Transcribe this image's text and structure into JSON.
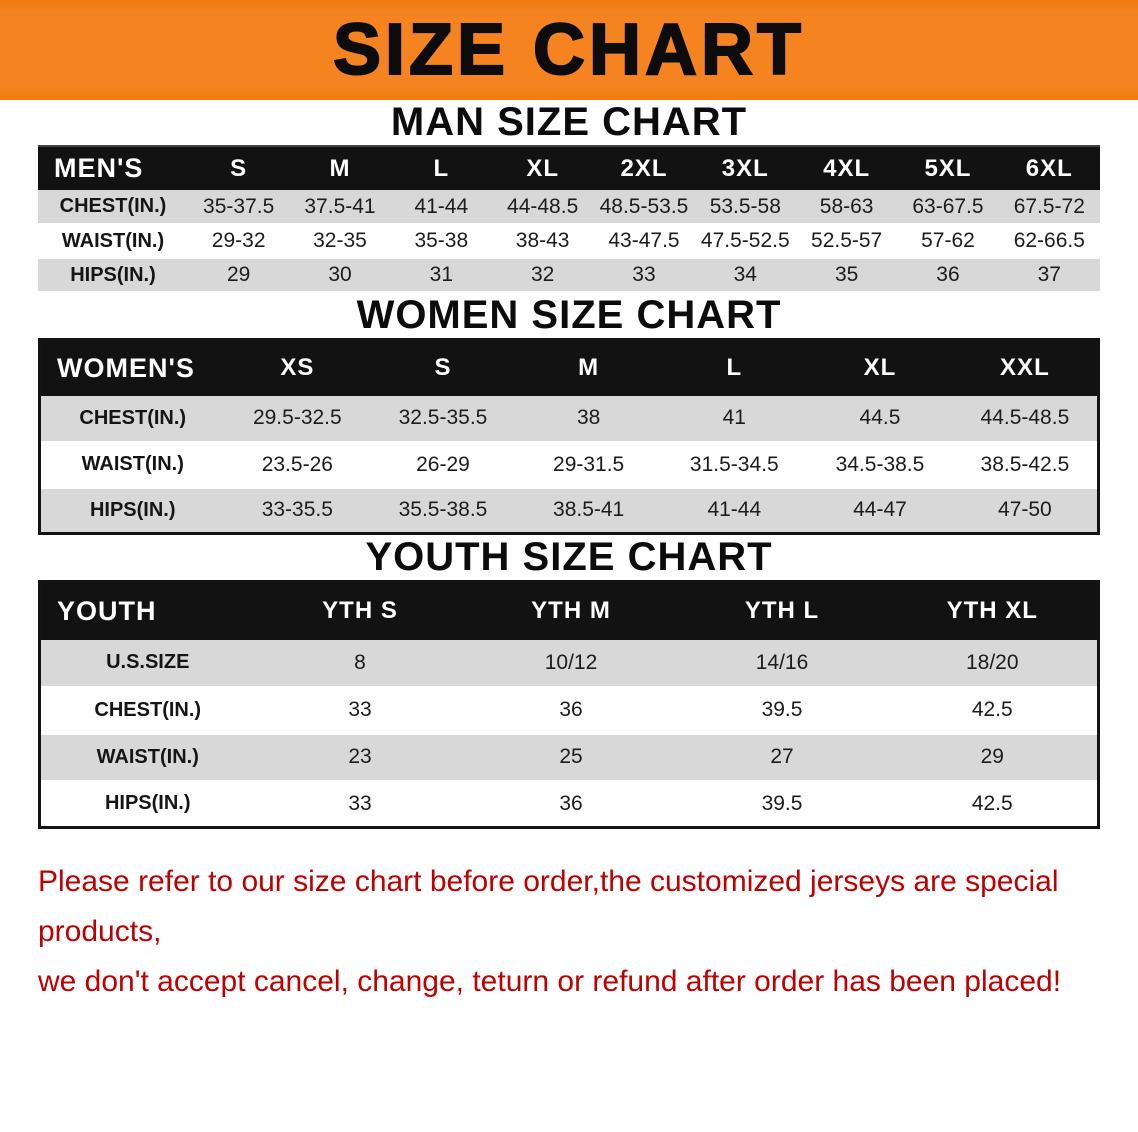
{
  "banner": {
    "title": "SIZE CHART"
  },
  "sections": [
    {
      "heading": "MAN SIZE CHART",
      "corner": "MEN'S",
      "columns": [
        "S",
        "M",
        "L",
        "XL",
        "2XL",
        "3XL",
        "4XL",
        "5XL",
        "6XL"
      ],
      "rows": [
        {
          "label": "CHEST(IN.)",
          "values": [
            "35-37.5",
            "37.5-41",
            "41-44",
            "44-48.5",
            "48.5-53.5",
            "53.5-58",
            "58-63",
            "63-67.5",
            "67.5-72"
          ]
        },
        {
          "label": "WAIST(IN.)",
          "values": [
            "29-32",
            "32-35",
            "35-38",
            "38-43",
            "43-47.5",
            "47.5-52.5",
            "52.5-57",
            "57-62",
            "62-66.5"
          ]
        },
        {
          "label": "HIPS(IN.)",
          "values": [
            "29",
            "30",
            "31",
            "32",
            "33",
            "34",
            "35",
            "36",
            "37"
          ]
        }
      ]
    },
    {
      "heading": "WOMEN SIZE CHART",
      "corner": "WOMEN'S",
      "columns": [
        "XS",
        "S",
        "M",
        "L",
        "XL",
        "XXL"
      ],
      "rows": [
        {
          "label": "CHEST(IN.)",
          "values": [
            "29.5-32.5",
            "32.5-35.5",
            "38",
            "41",
            "44.5",
            "44.5-48.5"
          ]
        },
        {
          "label": "WAIST(IN.)",
          "values": [
            "23.5-26",
            "26-29",
            "29-31.5",
            "31.5-34.5",
            "34.5-38.5",
            "38.5-42.5"
          ]
        },
        {
          "label": "HIPS(IN.)",
          "values": [
            "33-35.5",
            "35.5-38.5",
            "38.5-41",
            "41-44",
            "44-47",
            "47-50"
          ]
        }
      ]
    },
    {
      "heading": "YOUTH SIZE CHART",
      "corner": "YOUTH",
      "columns": [
        "YTH S",
        "YTH M",
        "YTH L",
        "YTH XL"
      ],
      "rows": [
        {
          "label": "U.S.SIZE",
          "values": [
            "8",
            "10/12",
            "14/16",
            "18/20"
          ]
        },
        {
          "label": "CHEST(IN.)",
          "values": [
            "33",
            "36",
            "39.5",
            "42.5"
          ]
        },
        {
          "label": "WAIST(IN.)",
          "values": [
            "23",
            "25",
            "27",
            "29"
          ]
        },
        {
          "label": "HIPS(IN.)",
          "values": [
            "33",
            "36",
            "39.5",
            "42.5"
          ]
        }
      ]
    }
  ],
  "footer": {
    "line1": "Please refer to our size chart before order,the customized jerseys are special products,",
    "line2": "we don't accept cancel, change, teturn or refund after order has been placed!"
  },
  "colors": {
    "banner_orange": "#F5831F",
    "header_black": "#121212",
    "row_gray": "#D8D8D8",
    "footer_red": "#C00000"
  }
}
